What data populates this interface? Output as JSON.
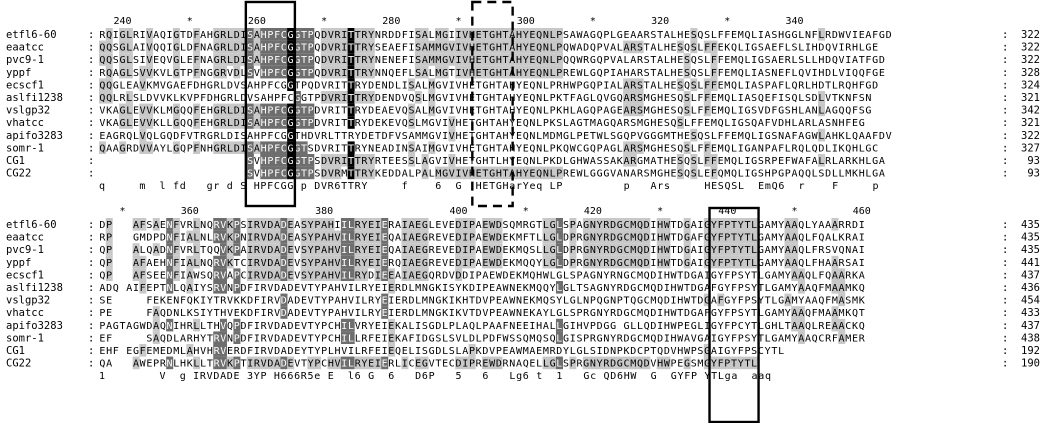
{
  "palette": {
    "identical": "#000000",
    "identical_text": "#ffffff",
    "similar": "#6e6e6e",
    "similar_text": "#ffffff",
    "weak": "#c8c8c8",
    "weak_text": "#000000",
    "none_text": "#000000"
  },
  "blocks": [
    {
      "ruler": [
        {
          "label": "240",
          "col": 3
        },
        {
          "label": "*",
          "col": 13
        },
        {
          "label": "260",
          "col": 23
        },
        {
          "label": "*",
          "col": 33
        },
        {
          "label": "280",
          "col": 43
        },
        {
          "label": "*",
          "col": 53
        },
        {
          "label": "300",
          "col": 63
        },
        {
          "label": "*",
          "col": 73
        },
        {
          "label": "320",
          "col": 83
        },
        {
          "label": "*",
          "col": 93
        },
        {
          "label": "340",
          "col": 103
        }
      ],
      "rows": [
        {
          "name": "etfl6-60",
          "seq": "RQIGLRIVAQIGTDFAHGRLDISAHPFCGGTPQDVRITTRYNRDDFISALMGIIVHETGHTAHYEQNLPSAWAGQPLGEAARSTALHESQSLFFEMQLIASHGGLNFLRDWVIEAFGD",
          "end": "322"
        },
        {
          "name": "eaatcc",
          "seq": "QQSGLAIVQQIGLDFNAGRLDISAHPFCGGTPQDVRITTRYSEAEFISAMMGVIVHETGHTAHYEQNLPQWADQPVALARSTALHESQSLFFEKQLIGSAEFLSLIHDQVIRHLGE",
          "end": "322"
        },
        {
          "name": "pvc9-1",
          "seq": "QQSGLSIVEQVGLEFNAGRLDISAHPFCGGTPQDVRITTRYNENEFISAMMGVIVHETGHTAHYEQNLPQQWRGQPVALARSTALHESQSLFFEMQLIGSAERLSLLHDQVIATFGD",
          "end": "322"
        },
        {
          "name": "yppf",
          "seq": "RQAGLSVVKVLGTPFNGGRVDLSVHPFCGGTPQDVRITTRYNNQEFLSALMGTIVHETGHTAHYEQNLPREWLGQPIAHARSTALHESQSLFFEMQLIASNEFLQVIHDLVIQQFGE",
          "end": "328"
        },
        {
          "name": "ecscf1",
          "seq": "QQGLEAVKMVGAEFDHGRLDVSAHPFCGGTPQDVRITTRYDENDLISALMGVIVHETGHTAHYEQNLPRHWPGQPIALARSTALHESQSLFFEMQLIASPAFLQRLHDTLRQHFGD",
          "end": "324"
        },
        {
          "name": "aslfi1238",
          "seq": "QQLRLSLDVVKLKVPFDHGRLDVSAHPFCGGTPDVRITTRYDENDVQSLMGVIVHETGHTAHYEQNLPKTFAGLQVGQARSMGHESQSLFFEMQLIASQEFISQLSDLVTKNFSN",
          "end": "321"
        },
        {
          "name": "vslgp32",
          "seq": "VKAGLEVVKLMGQQFEHGRLDISAHPFCGGTPDVRITTRYDEAEVQSALMGVIVHETGHTAHYEQNLPKHLAGQPAGEARSMGHESQSLFFEMQLIGSVDFGSHLANLAGQQFSG",
          "end": "342"
        },
        {
          "name": "vhatcc",
          "seq": "VKAGLEVVKLLGQQFEHGRLDISAHPFCGGTPDVRITTRYDEKEVQSLMGVIVHETGHTAHYEQNLPKSLAGTMAGQARSMGHESQSLFFEMQLIGSQAFVDHLARLASNHFEG",
          "end": "321"
        },
        {
          "name": "apifo3283",
          "seq": "EAGRQLVQLGQDFVTRGRLDISAHPFCGGTHDVRLTTRYDETDFVSAMMGVIVHETGHTAHYEQNLMDMGLPETWLSGQPVGGGMTHESQSLFFEMQLIGSNAFAGWLAHKLQAAFDV",
          "end": "322"
        },
        {
          "name": "somr-1",
          "seq": "QAAGRDVVAYLGQPFNHGRLDISAHPFCGGTSDVRITTRYNEADINSAIMGVIVHETGHTAHYEQNLPKQWCGQPAGLARSMGHESQSLFFEMQLIGANPAFLRQLQDLIKQHLGC",
          "end": "327"
        },
        {
          "name": "CG1",
          "seq": "----------------------SVHPFCGGTPSDVRITTRYRTEESSLAGVIVHETGHTLHYEQNLPKDLGHWASSAKARGMATHESQSLFFEMQLIGSRPEFWAFALRLARKHLGA",
          "end": "93"
        },
        {
          "name": "CG22",
          "seq": "----------------------SVHPFCGGTPSDVRMTTRYKEDDALPALMGVIVHETGHTAHYEQNLPREWLGGGVANARSMGHESQSLEFQMQLIGSHPGPAQQLSDLLMKHLGA",
          "end": "93"
        }
      ],
      "consensus": "q     m  l fd   gr d S HPFCGG p DVR6TTRY     f    6  G  HETGHarYeq LP         p   Ars     HESQSL  EmQ6  r    F     p"
    },
    {
      "ruler": [
        {
          "label": "*",
          "col": 3
        },
        {
          "label": "360",
          "col": 13
        },
        {
          "label": "380",
          "col": 33
        },
        {
          "label": "400",
          "col": 53
        },
        {
          "label": "*",
          "col": 63
        },
        {
          "label": "420",
          "col": 73
        },
        {
          "label": "*",
          "col": 83
        },
        {
          "label": "440",
          "col": 93
        },
        {
          "label": "*",
          "col": 103
        },
        {
          "label": "460",
          "col": 113
        }
      ],
      "rows": [
        {
          "name": "etfl6-60",
          "seq": "DP---AFSAENFVRLNQRVKPSIRVDADEASYPAHIILRYEIERAIAEGLEVEDIPAEWDSQMRGTLGLSPAGNYRDGCMQDIHWTDGAIGYFPTYTLGAMYAAQLYAAARRDI",
          "end": "435"
        },
        {
          "name": "eaatcc",
          "seq": "RP---GMDPDNFIALNLRVKPNIRVDADEASYPAHVILRYEIEQAIAEGREVEDIPAEWDEKMFTLLGLDPRGNYRDGCMQDIHWTDGAFGYFPTYTLGAMYAAQLFQALKRAI",
          "end": "435"
        },
        {
          "name": "pvc9-1",
          "seq": "QP---ALQADNFVRLTQQVKPAIRVDADEVSYPAHVILRYEIEQAIAEGREVEDIPAEWDEKMQSLLGLDPRGNYRDGCMQDIHWTDGAIGYFPTYTLGAMYAAQLFRSVQNAI",
          "end": "435"
        },
        {
          "name": "yppf",
          "seq": "QP---AFAEHNFIALNQRVKTCIRVDADEVSYPAHVILRYEIERQIAEGREVEDIPAEWDEKMQQYLGLDPRGNYRDGCMQDIHWTDGAIGYFPTYTLGAMYAAQLFHAARSAI",
          "end": "441"
        },
        {
          "name": "ecscf1",
          "seq": "QP---AFSEENFIAWSQRVAPCIRVDADEVSYPAHVILRYDIEEAIAEGQRDVDDIPAEWDEKMQHWLGLSPAGNYRNGCMQDIHWTDGAIGYFPSYTLGAMYAAQLFQAARKAL",
          "end": "437"
        },
        {
          "name": "aslfi1238",
          "seq": "ADQ-AIFEPTNLQAIYSRVNPDFIRVDADEVTYPAHVILRYEIERDLMNGKISYKDIPEAWNEKMQQYLGLTSAGNYRDGCMQDIHWTDGAFGYFPSYTLGAMYAAQFMAAMKQTV",
          "end": "436"
        },
        {
          "name": "vslgp32",
          "seq": "SE-----FEKENFQKIYTRVKKDFIRVDADEVTYPAHVILRYEIERDLMNGKIKHTDVPEAWNEKMQSYLGLNPQGNPTQGCMQDIHWTDGAFGYFPSYTLGAMYAAQFMASMKKTV",
          "end": "454"
        },
        {
          "name": "vhatcc",
          "seq": "PE-----FAQDNLKSIYTHVEKDFIRVDADEVTYPAHVILRYEIERDLMNGKIKVTDVPEAWNEKAYLGLSPRGNYRDGCMQDIHWTDGAFGYFPSYTLGAMYAAQFMAAMKQTV",
          "end": "433"
        },
        {
          "name": "apifo3283",
          "seq": "PAGTAGWDAQNIHRLLTHVQPDFIRVDADEVTYPCHILVRYEIEKALISGDLPLAQLPAAFNEEIHALLGIHVPDGG-GLLQDIHWPEGLIGYFPCYTLGHLTAAQLREAACKQV",
          "end": "437"
        },
        {
          "name": "somr-1",
          "seq": "EF-----SAQDLARHYTRVNPDFIRVDADEVTYPCHILLRFEIEKAFIDGSLSVLDLPDFWSSQMQSQLGISPRGNYRDGCMQDIHWAVGAIGYFPSYTLGAMYAAQCRFAMERSL",
          "end": "438"
        },
        {
          "name": "CG1",
          "seq": "EHF-EGFEMEDMLAHVHRVERDFIRVDADEYTYPLHVILRFEIEQELISGDLSLAPKDVPEAWMAEMRDYLGLSIDNPKDCPTQDVHWPSGAIGYFPSCYTL-----------",
          "end": "192"
        },
        {
          "name": "CG22",
          "seq": "QA---AWEPRNLHKLLTRVKPTIRVDADEVTYPCHVILRYEIERLICEGVTECDIPREWDRNAQELLGLSPRGNYRDGCMQDVHWPEGSMGYFPTYTL-----------",
          "end": "190"
        }
      ],
      "consensus": "1        V  g IRVDADE 3YP H666R5e E  l6 G  6   D6P   5   6   Lg6 t  1   Gc QD6HW  G  GYFP YTLga  aaq"
    }
  ]
}
